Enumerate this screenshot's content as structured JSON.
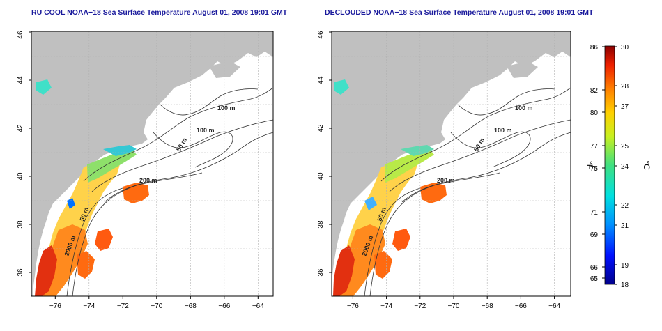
{
  "panels": [
    {
      "title": "RU COOL NOAA−18 Sea Surface Temperature August 01, 2008 19:01 GMT",
      "contour_labels": [
        "100 m",
        "100 m",
        "50 m",
        "200 m",
        "50 m",
        "2000 m"
      ]
    },
    {
      "title": "DECLOUDED NOAA−18 Sea Surface Temperature August 01, 2008 19:01 GMT",
      "contour_labels": [
        "100 m",
        "100 m",
        "50 m",
        "200 m",
        "50 m",
        "2000 m"
      ]
    }
  ],
  "axes": {
    "x_ticks": [
      "−76",
      "−74",
      "−72",
      "−70",
      "−68",
      "−66",
      "−64"
    ],
    "y_ticks": [
      "36",
      "38",
      "40",
      "42",
      "44",
      "46"
    ]
  },
  "colorbar": {
    "f_ticks": [
      "86",
      "82",
      "80",
      "77",
      "75",
      "71",
      "69",
      "66",
      "65"
    ],
    "c_ticks": [
      "30",
      "28",
      "27",
      "25",
      "24",
      "22",
      "21",
      "19",
      "18"
    ],
    "f_unit": "°F",
    "c_unit": "°C"
  },
  "map": {
    "lon_range": [
      -77.2,
      -63.1
    ],
    "lat_range": [
      35,
      46
    ],
    "land_color": "#c0c0c0",
    "ocean_color": "#ffffff",
    "grid": true
  }
}
